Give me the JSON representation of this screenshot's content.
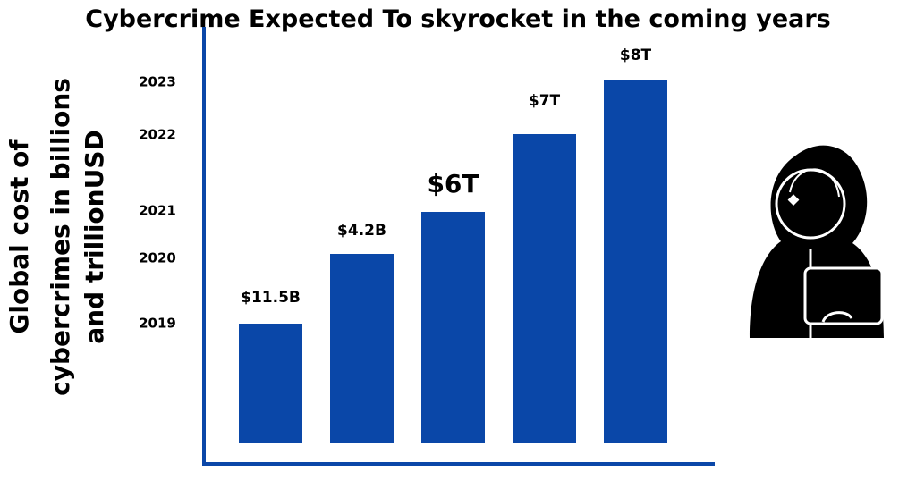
{
  "title": "Cybercrime Expected  To skyrocket  in the coming years",
  "y_axis_label": [
    "Global cost  of",
    "cybercrimes in billions",
    "and trillionUSD"
  ],
  "bars": [
    {
      "year": "2019",
      "label": "$11.5B"
    },
    {
      "year": "2020",
      "label": "$4.2B"
    },
    {
      "year": "2021",
      "label": "$6T"
    },
    {
      "year": "2022",
      "label": "$7T"
    },
    {
      "year": "2023",
      "label": "$8T"
    }
  ]
}
